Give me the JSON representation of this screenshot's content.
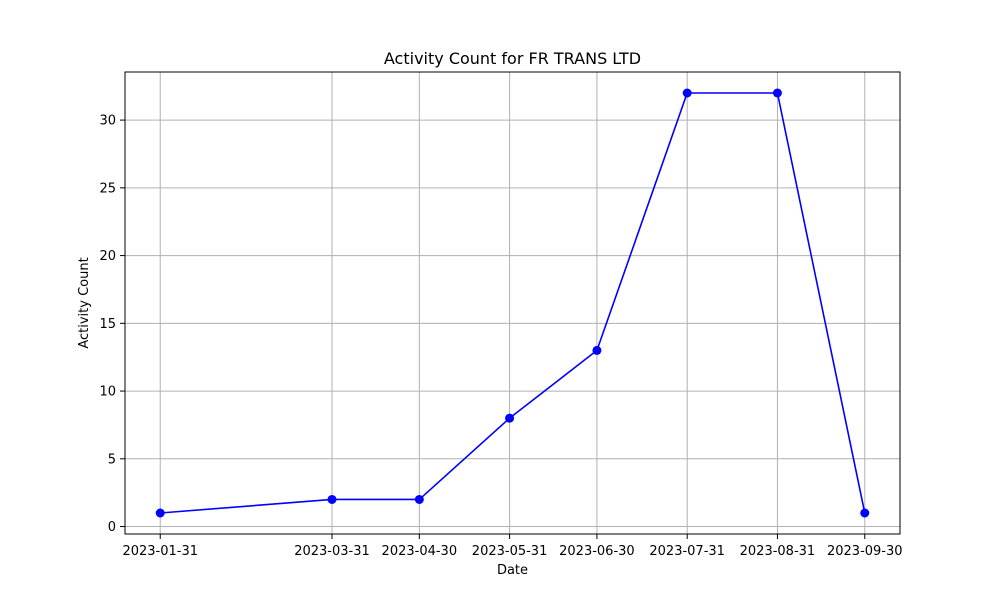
{
  "chart_data": {
    "type": "line",
    "title": "Activity Count for FR TRANS LTD",
    "xlabel": "Date",
    "ylabel": "Activity Count",
    "x_tick_labels": [
      "2023-01-31",
      "2023-03-31",
      "2023-04-30",
      "2023-05-31",
      "2023-06-30",
      "2023-07-31",
      "2023-08-31",
      "2023-09-30"
    ],
    "y_tick_labels": [
      "0",
      "5",
      "10",
      "15",
      "20",
      "25",
      "30"
    ],
    "y_ticks": [
      0,
      5,
      10,
      15,
      20,
      25,
      30
    ],
    "ylim": [
      -0.55,
      33.55
    ],
    "grid": true,
    "series": [
      {
        "x": [
          "2023-01-31",
          "2023-03-31",
          "2023-04-30",
          "2023-05-31",
          "2023-06-30",
          "2023-07-31",
          "2023-08-31",
          "2023-09-30"
        ],
        "values": [
          1,
          2,
          2,
          8,
          13,
          32,
          32,
          1
        ],
        "color": "#0000ff",
        "marker": "circle"
      }
    ]
  }
}
